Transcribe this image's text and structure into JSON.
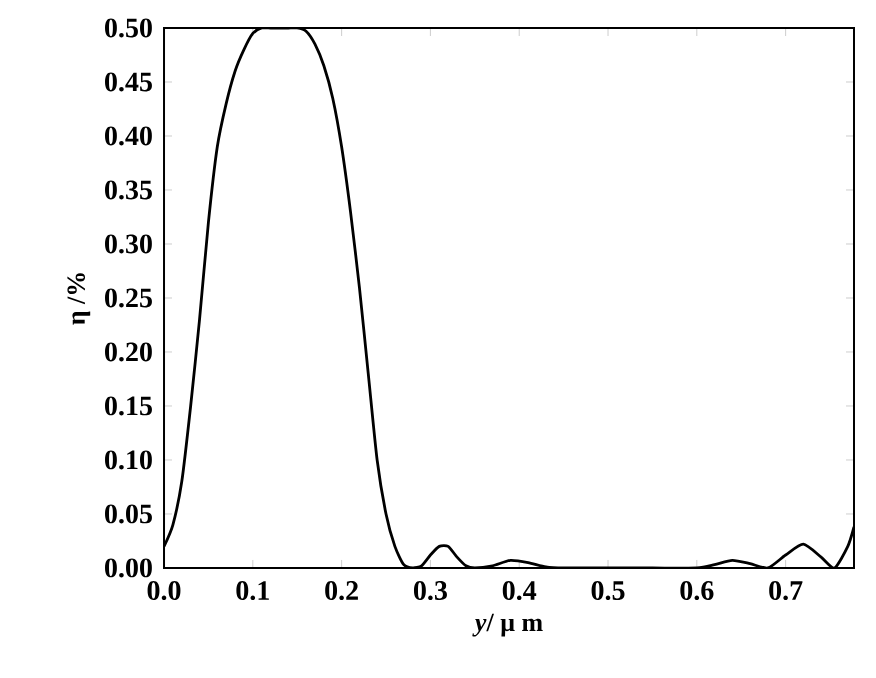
{
  "chart_data": {
    "type": "line",
    "xlabel": "*y*/ μ m",
    "ylabel": "η /%",
    "color": "#000000",
    "x": [
      0,
      0.01,
      0.02,
      0.03,
      0.04,
      0.05,
      0.06,
      0.07,
      0.08,
      0.09,
      0.1,
      0.11,
      0.12,
      0.13,
      0.14,
      0.15,
      0.16,
      0.17,
      0.18,
      0.19,
      0.2,
      0.21,
      0.22,
      0.23,
      0.24,
      0.25,
      0.26,
      0.27,
      0.28,
      0.29,
      0.3,
      0.31,
      0.32,
      0.33,
      0.34,
      0.35,
      0.37,
      0.39,
      0.41,
      0.43,
      0.45,
      0.5,
      0.55,
      0.6,
      0.62,
      0.64,
      0.66,
      0.68,
      0.7,
      0.72,
      0.74,
      0.755,
      0.77,
      0.777
    ],
    "values": [
      0.02,
      0.04,
      0.08,
      0.15,
      0.23,
      0.32,
      0.39,
      0.43,
      0.46,
      0.48,
      0.495,
      0.5,
      0.5,
      0.5,
      0.5,
      0.5,
      0.497,
      0.485,
      0.465,
      0.435,
      0.39,
      0.33,
      0.26,
      0.18,
      0.1,
      0.05,
      0.02,
      0.003,
      0,
      0.002,
      0.012,
      0.02,
      0.02,
      0.01,
      0.002,
      0,
      0.002,
      0.007,
      0.005,
      0.001,
      0,
      0,
      0,
      0,
      0.003,
      0.007,
      0.004,
      0,
      0.012,
      0.022,
      0.01,
      0,
      0.02,
      0.038
    ],
    "xlim": [
      0,
      0.777
    ],
    "ylim": [
      0,
      0.5
    ],
    "xticks": [
      {
        "value": 0,
        "label": "0.0"
      },
      {
        "value": 0.1,
        "label": "0.1"
      },
      {
        "value": 0.2,
        "label": "0.2"
      },
      {
        "value": 0.3,
        "label": "0.3"
      },
      {
        "value": 0.4,
        "label": "0.4"
      },
      {
        "value": 0.5,
        "label": "0.5"
      },
      {
        "value": 0.6,
        "label": "0.6"
      },
      {
        "value": 0.7,
        "label": "0.7"
      }
    ],
    "yticks": [
      {
        "value": 0,
        "label": "0.00"
      },
      {
        "value": 0.05,
        "label": "0.05"
      },
      {
        "value": 0.1,
        "label": "0.10"
      },
      {
        "value": 0.15,
        "label": "0.15"
      },
      {
        "value": 0.2,
        "label": "0.20"
      },
      {
        "value": 0.25,
        "label": "0.25"
      },
      {
        "value": 0.3,
        "label": "0.30"
      },
      {
        "value": 0.35,
        "label": "0.35"
      },
      {
        "value": 0.4,
        "label": "0.40"
      },
      {
        "value": 0.45,
        "label": "0.45"
      },
      {
        "value": 0.5,
        "label": "0.50"
      }
    ],
    "grid": false,
    "marker": "none",
    "line_style": "solid"
  }
}
